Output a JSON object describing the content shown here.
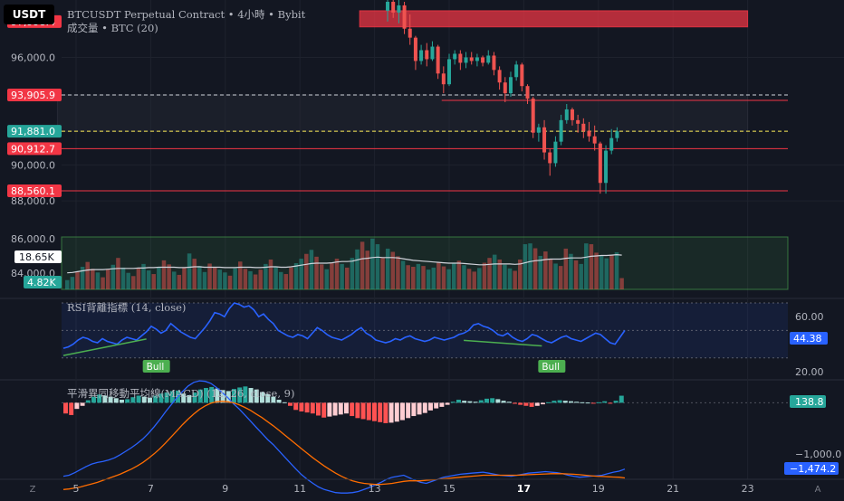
{
  "header": {
    "currency_chip": "USDT",
    "symbol_line": "BTCUSDT Perpetual Contract • 4小時 • Bybit",
    "volume_line": "成交量 • BTC (20)",
    "rsi_line": "RSI背離指標 (14, close)",
    "macd_line": "平滑異同移動平均線(MACD) (12, 26, close, 9)"
  },
  "colors": {
    "background": "#131722",
    "up": "#26a69a",
    "down": "#ef5350",
    "rsi_line": "#2962ff",
    "macd_line": "#2962ff",
    "signal_line": "#ff6d00",
    "level_line": "#f23645",
    "volume_band": "#4caf50"
  },
  "chart_data": [
    {
      "name": "price",
      "type": "candlestick",
      "x_ticks": [
        "5",
        "7",
        "9",
        "11",
        "13",
        "15",
        "17",
        "19",
        "21",
        "23"
      ],
      "x_tick_days": [
        5,
        7,
        9,
        11,
        13,
        15,
        17,
        19,
        21,
        23
      ],
      "ylim": [
        87500,
        99200
      ],
      "y_ticks": [
        88000.0,
        90000.0,
        96000.0
      ],
      "y_tick_labels": [
        "88,000.0",
        "90,000.0",
        "96,000.0"
      ],
      "axis_tags": [
        {
          "value": 97998.4,
          "label": "97,998.4",
          "color": "#f23645"
        },
        {
          "value": 93905.9,
          "label": "93,905.9",
          "color": "#f23645"
        },
        {
          "value": 91881.0,
          "label": "91,881.0",
          "color": "#26a69a"
        },
        {
          "value": 90912.7,
          "label": "90,912.7",
          "color": "#f23645"
        },
        {
          "value": 88560.1,
          "label": "88,560.1",
          "color": "#f23645"
        }
      ],
      "horizontal_lines": [
        {
          "value": 93905.9,
          "style": "dashed",
          "color": "#d1d4dc"
        },
        {
          "value": 93600,
          "style": "solid",
          "color": "#f23645"
        },
        {
          "value": 91881.0,
          "style": "dashed",
          "color": "#ffee58"
        },
        {
          "value": 90912.7,
          "style": "solid",
          "color": "#f23645"
        },
        {
          "value": 88560.1,
          "style": "solid",
          "color": "#f23645"
        }
      ],
      "zones": [
        {
          "from": 98600,
          "to": 97700,
          "x_start": 12.6,
          "x_end": 23.0,
          "color": "#f23645"
        },
        {
          "from": 93905.9,
          "to": 91881.0,
          "x_start": 4.5,
          "x_end": 23.0,
          "color": "#2a2e39"
        }
      ],
      "candles": [
        {
          "t": 13.35,
          "o": 98600,
          "h": 99200,
          "l": 98000,
          "c": 99100
        },
        {
          "t": 13.5,
          "o": 99100,
          "h": 99200,
          "l": 98200,
          "c": 98500
        },
        {
          "t": 13.65,
          "o": 98500,
          "h": 99200,
          "l": 97900,
          "c": 98900
        },
        {
          "t": 13.8,
          "o": 98900,
          "h": 99100,
          "l": 97300,
          "c": 97600
        },
        {
          "t": 13.95,
          "o": 97600,
          "h": 98400,
          "l": 96700,
          "c": 97100
        },
        {
          "t": 14.1,
          "o": 97100,
          "h": 97200,
          "l": 95300,
          "c": 95800
        },
        {
          "t": 14.25,
          "o": 95800,
          "h": 96700,
          "l": 95600,
          "c": 96400
        },
        {
          "t": 14.4,
          "o": 96400,
          "h": 96800,
          "l": 95500,
          "c": 95900
        },
        {
          "t": 14.55,
          "o": 95900,
          "h": 96900,
          "l": 95800,
          "c": 96600
        },
        {
          "t": 14.7,
          "o": 96600,
          "h": 96700,
          "l": 94800,
          "c": 95100
        },
        {
          "t": 14.85,
          "o": 95100,
          "h": 95500,
          "l": 94000,
          "c": 94500
        },
        {
          "t": 15.0,
          "o": 94500,
          "h": 96200,
          "l": 94400,
          "c": 95900
        },
        {
          "t": 15.15,
          "o": 95900,
          "h": 96400,
          "l": 95600,
          "c": 96200
        },
        {
          "t": 15.3,
          "o": 96200,
          "h": 96400,
          "l": 95300,
          "c": 95700
        },
        {
          "t": 15.45,
          "o": 95700,
          "h": 96300,
          "l": 95400,
          "c": 96000
        },
        {
          "t": 15.6,
          "o": 96000,
          "h": 96300,
          "l": 95600,
          "c": 95800
        },
        {
          "t": 15.75,
          "o": 95800,
          "h": 96200,
          "l": 95500,
          "c": 96000
        },
        {
          "t": 15.9,
          "o": 96000,
          "h": 96100,
          "l": 95500,
          "c": 95700
        },
        {
          "t": 16.05,
          "o": 95700,
          "h": 96400,
          "l": 95600,
          "c": 96100
        },
        {
          "t": 16.2,
          "o": 96100,
          "h": 96300,
          "l": 95000,
          "c": 95300
        },
        {
          "t": 16.35,
          "o": 95300,
          "h": 95500,
          "l": 94200,
          "c": 94600
        },
        {
          "t": 16.5,
          "o": 94600,
          "h": 94900,
          "l": 93500,
          "c": 94000
        },
        {
          "t": 16.65,
          "o": 94000,
          "h": 95200,
          "l": 93800,
          "c": 94900
        },
        {
          "t": 16.8,
          "o": 94900,
          "h": 95800,
          "l": 94700,
          "c": 95600
        },
        {
          "t": 16.95,
          "o": 95600,
          "h": 95700,
          "l": 94100,
          "c": 94400
        },
        {
          "t": 17.1,
          "o": 94400,
          "h": 94500,
          "l": 93400,
          "c": 93700
        },
        {
          "t": 17.25,
          "o": 93700,
          "h": 93800,
          "l": 91500,
          "c": 91800
        },
        {
          "t": 17.4,
          "o": 91800,
          "h": 92300,
          "l": 91300,
          "c": 92100
        },
        {
          "t": 17.55,
          "o": 92100,
          "h": 92500,
          "l": 90300,
          "c": 90700
        },
        {
          "t": 17.7,
          "o": 90700,
          "h": 90900,
          "l": 89400,
          "c": 90100
        },
        {
          "t": 17.85,
          "o": 90100,
          "h": 91600,
          "l": 89900,
          "c": 91300
        },
        {
          "t": 18.0,
          "o": 91300,
          "h": 92800,
          "l": 91100,
          "c": 92500
        },
        {
          "t": 18.15,
          "o": 92500,
          "h": 93400,
          "l": 92300,
          "c": 93100
        },
        {
          "t": 18.3,
          "o": 93100,
          "h": 93200,
          "l": 92200,
          "c": 92500
        },
        {
          "t": 18.45,
          "o": 92500,
          "h": 92800,
          "l": 91800,
          "c": 92300
        },
        {
          "t": 18.6,
          "o": 92300,
          "h": 92600,
          "l": 91500,
          "c": 91900
        },
        {
          "t": 18.75,
          "o": 91900,
          "h": 92400,
          "l": 91300,
          "c": 91600
        },
        {
          "t": 18.9,
          "o": 91600,
          "h": 92200,
          "l": 90800,
          "c": 91200
        },
        {
          "t": 19.05,
          "o": 91200,
          "h": 91300,
          "l": 88400,
          "c": 89000
        },
        {
          "t": 19.2,
          "o": 89000,
          "h": 91100,
          "l": 88400,
          "c": 90800
        },
        {
          "t": 19.35,
          "o": 90800,
          "h": 92000,
          "l": 90600,
          "c": 91500
        },
        {
          "t": 19.5,
          "o": 91500,
          "h": 92100,
          "l": 91300,
          "c": 91880
        }
      ]
    },
    {
      "name": "volume",
      "type": "bar",
      "label_current": "18.65K",
      "label_other": "4.82K",
      "values": [
        2.3,
        3.1,
        4.4,
        5.6,
        6.8,
        5.1,
        4.2,
        3.0,
        4.9,
        6.1,
        7.8,
        5.4,
        4.1,
        3.3,
        5.2,
        6.3,
        4.7,
        3.8,
        5.6,
        7.2,
        6.2,
        4.4,
        3.6,
        5.3,
        8.9,
        7.6,
        5.8,
        4.3,
        6.4,
        5.6,
        4.9,
        4.2,
        3.4,
        5.2,
        6.9,
        5.1,
        4.5,
        3.7,
        4.9,
        6.3,
        7.4,
        5.5,
        4.3,
        3.8,
        5.4,
        6.5,
        7.6,
        8.8,
        9.8,
        8.1,
        6.2,
        5.0,
        6.6,
        7.6,
        6.3,
        5.4,
        7.8,
        9.9,
        11.8,
        9.6,
        12.6,
        11.2,
        7.8,
        10.1,
        9.3,
        8.2,
        7.1,
        6.0,
        5.6,
        6.3,
        5.8,
        4.9,
        5.4,
        6.7,
        5.7,
        5.0,
        6.4,
        7.1,
        6.0,
        5.1,
        4.4,
        5.3,
        6.6,
        7.8,
        8.6,
        7.4,
        6.1,
        5.2,
        4.6,
        7.4,
        11.2,
        11.4,
        10.2,
        8.3,
        9.4,
        7.6,
        6.4,
        5.8,
        10.1,
        8.8,
        7.2,
        6.3,
        11.4,
        11.2,
        9.1,
        8.4,
        7.7,
        8.6,
        9.2,
        2.8
      ],
      "ma_values": [
        4.1,
        4.2,
        4.4,
        4.6,
        4.8,
        4.9,
        4.9,
        4.9,
        5.0,
        5.1,
        5.2,
        5.2,
        5.2,
        5.2,
        5.3,
        5.3,
        5.4,
        5.4,
        5.5,
        5.5,
        5.5,
        5.5,
        5.4,
        5.4,
        5.5,
        5.6,
        5.6,
        5.5,
        5.5,
        5.5,
        5.5,
        5.4,
        5.4,
        5.4,
        5.5,
        5.5,
        5.5,
        5.4,
        5.4,
        5.5,
        5.6,
        5.6,
        5.5,
        5.5,
        5.6,
        5.8,
        6.0,
        6.2,
        6.4,
        6.5,
        6.5,
        6.5,
        6.6,
        6.8,
        6.9,
        6.9,
        7.0,
        7.3,
        7.6,
        7.7,
        7.9,
        8.0,
        7.9,
        7.9,
        7.9,
        7.8,
        7.6,
        7.4,
        7.2,
        7.1,
        7.0,
        6.9,
        6.8,
        6.7,
        6.6,
        6.5,
        6.5,
        6.5,
        6.4,
        6.3,
        6.2,
        6.1,
        6.1,
        6.2,
        6.3,
        6.3,
        6.3,
        6.3,
        6.2,
        6.3,
        6.6,
        6.9,
        7.1,
        7.2,
        7.4,
        7.5,
        7.5,
        7.5,
        7.7,
        7.8,
        7.8,
        7.8,
        8.0,
        8.2,
        8.3,
        8.4,
        8.4,
        8.5,
        8.6,
        8.5
      ]
    },
    {
      "name": "rsi",
      "type": "line",
      "title": "RSI背離指標 (14, close)",
      "ylim": [
        14,
        72
      ],
      "y_ticks": [
        20.0,
        60.0
      ],
      "y_tick_labels": [
        "20.00",
        "60.00"
      ],
      "current": 44.38,
      "current_label": "44.38",
      "bands": [
        30,
        50,
        70
      ],
      "values": [
        37,
        38,
        40,
        43,
        45,
        44,
        42,
        41,
        44,
        42,
        41,
        40,
        43,
        45,
        44,
        43,
        46,
        49,
        53,
        51,
        48,
        50,
        55,
        52,
        49,
        47,
        45,
        44,
        48,
        52,
        57,
        63,
        62,
        60,
        66,
        70,
        69,
        67,
        68,
        65,
        60,
        62,
        58,
        55,
        50,
        48,
        46,
        45,
        47,
        46,
        44,
        48,
        52,
        50,
        47,
        45,
        44,
        43,
        45,
        47,
        50,
        52,
        48,
        46,
        43,
        42,
        41,
        42,
        44,
        43,
        45,
        46,
        44,
        43,
        42,
        43,
        45,
        44,
        43,
        44,
        45,
        47,
        48,
        50,
        54,
        55,
        53,
        52,
        50,
        47,
        46,
        48,
        45,
        43,
        42,
        44,
        47,
        46,
        44,
        42,
        41,
        43,
        45,
        46,
        44,
        43,
        42,
        44,
        46,
        48,
        47,
        44,
        41,
        40,
        45,
        50
      ],
      "divergences": [
        {
          "label": "Bull",
          "i0": 0,
          "i1": 17
        },
        {
          "label": "Bull",
          "i0": 82,
          "i1": 98
        }
      ]
    },
    {
      "name": "macd",
      "type": "histogram+lines",
      "title": "平滑異同移動平均線(MACD) (12, 26, close, 9)",
      "ylim": [
        -1500,
        450
      ],
      "y_ticks": [
        0.0,
        -1000.0
      ],
      "y_tick_labels": [
        "0.0",
        "−1,000.0"
      ],
      "hist_current_label": "138.8",
      "signal_current_label": "−1,474.2",
      "hist_current": 138.8,
      "signal_current": -1474.2,
      "histogram": [
        -210,
        -240,
        -120,
        -60,
        50,
        120,
        160,
        140,
        120,
        90,
        60,
        70,
        110,
        140,
        120,
        100,
        140,
        180,
        200,
        230,
        240,
        180,
        150,
        200,
        260,
        290,
        310,
        280,
        250,
        230,
        270,
        300,
        320,
        290,
        260,
        210,
        170,
        120,
        60,
        10,
        -60,
        -140,
        -170,
        -190,
        -210,
        -250,
        -290,
        -270,
        -250,
        -230,
        -210,
        -260,
        -300,
        -320,
        -340,
        -360,
        -380,
        -400,
        -390,
        -370,
        -340,
        -300,
        -260,
        -230,
        -200,
        -150,
        -110,
        -80,
        -40,
        20,
        60,
        40,
        30,
        20,
        50,
        80,
        90,
        70,
        40,
        20,
        -20,
        -40,
        -60,
        -80,
        -60,
        -30,
        10,
        40,
        50,
        40,
        30,
        20,
        10,
        5,
        -5,
        10,
        30,
        -15,
        40,
        138.8
      ],
      "macd_line": [
        -1440,
        -1420,
        -1370,
        -1310,
        -1250,
        -1200,
        -1170,
        -1150,
        -1120,
        -1080,
        -1020,
        -950,
        -880,
        -800,
        -710,
        -600,
        -470,
        -330,
        -180,
        -40,
        100,
        220,
        330,
        400,
        430,
        420,
        380,
        300,
        200,
        100,
        -20,
        -120,
        -240,
        -360,
        -480,
        -600,
        -720,
        -820,
        -940,
        -1060,
        -1180,
        -1300,
        -1410,
        -1500,
        -1580,
        -1650,
        -1700,
        -1730,
        -1760,
        -1770,
        -1770,
        -1760,
        -1740,
        -1700,
        -1660,
        -1610,
        -1560,
        -1500,
        -1460,
        -1440,
        -1420,
        -1470,
        -1520,
        -1560,
        -1580,
        -1540,
        -1500,
        -1460,
        -1440,
        -1420,
        -1400,
        -1390,
        -1380,
        -1370,
        -1360,
        -1380,
        -1400,
        -1420,
        -1430,
        -1440,
        -1420,
        -1400,
        -1380,
        -1370,
        -1360,
        -1350,
        -1360,
        -1370,
        -1390,
        -1420,
        -1440,
        -1460,
        -1450,
        -1440,
        -1430,
        -1420,
        -1390,
        -1360,
        -1340,
        -1300
      ],
      "signal_line": [
        -1700,
        -1690,
        -1670,
        -1650,
        -1620,
        -1590,
        -1560,
        -1520,
        -1480,
        -1440,
        -1400,
        -1350,
        -1300,
        -1240,
        -1170,
        -1090,
        -1000,
        -900,
        -790,
        -670,
        -550,
        -430,
        -320,
        -220,
        -130,
        -60,
        -10,
        20,
        30,
        20,
        0,
        -40,
        -90,
        -150,
        -220,
        -290,
        -370,
        -450,
        -540,
        -630,
        -720,
        -810,
        -900,
        -990,
        -1080,
        -1160,
        -1240,
        -1310,
        -1380,
        -1440,
        -1490,
        -1530,
        -1560,
        -1580,
        -1590,
        -1600,
        -1600,
        -1590,
        -1580,
        -1560,
        -1540,
        -1530,
        -1530,
        -1530,
        -1520,
        -1510,
        -1500,
        -1490,
        -1480,
        -1470,
        -1460,
        -1450,
        -1440,
        -1430,
        -1420,
        -1420,
        -1420,
        -1420,
        -1420,
        -1420,
        -1420,
        -1415,
        -1410,
        -1405,
        -1400,
        -1395,
        -1390,
        -1390,
        -1390,
        -1395,
        -1400,
        -1410,
        -1420,
        -1430,
        -1440,
        -1445,
        -1450,
        -1455,
        -1460,
        -1474.2
      ]
    }
  ],
  "bottom_bar": {
    "left_button": "Z",
    "right_button": "A"
  }
}
